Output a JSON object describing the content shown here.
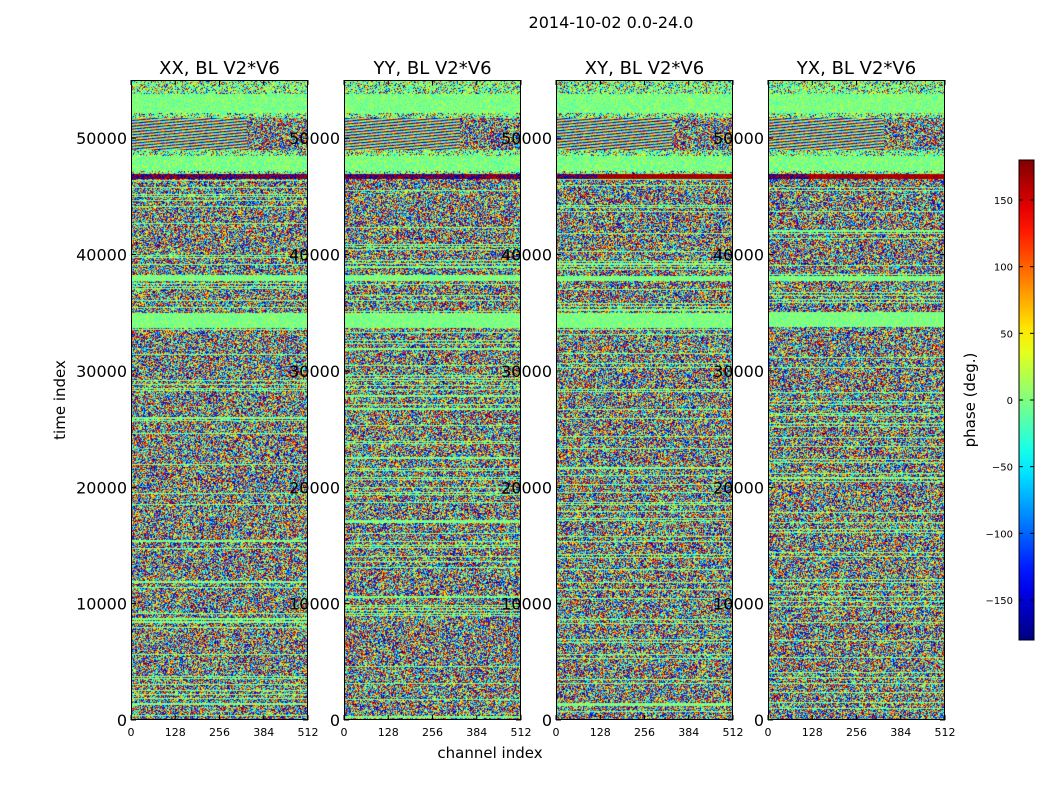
{
  "chart_data": {
    "type": "heatmap",
    "suptitle": "2014-10-02 0.0-24.0",
    "xlabel": "channel index",
    "ylabel": "time index",
    "xlim": [
      0,
      512
    ],
    "ylim": [
      0,
      55000
    ],
    "x_ticks": [
      0,
      128,
      256,
      384,
      512
    ],
    "y_ticks": [
      0,
      10000,
      20000,
      30000,
      40000,
      50000
    ],
    "colormap": "jet",
    "colorbar": {
      "label": "phase (deg.)",
      "range": [
        -180,
        180
      ],
      "ticks": [
        -150,
        -100,
        -50,
        0,
        50,
        100,
        150
      ],
      "tick_labels": [
        "−150",
        "−100",
        "−50",
        "0",
        "50",
        "100",
        "150"
      ]
    },
    "panels": [
      {
        "title": "XX, BL V2*V6"
      },
      {
        "title": "YY, BL V2*V6"
      },
      {
        "title": "XY, BL V2*V6"
      },
      {
        "title": "YX, BL V2*V6"
      }
    ]
  }
}
